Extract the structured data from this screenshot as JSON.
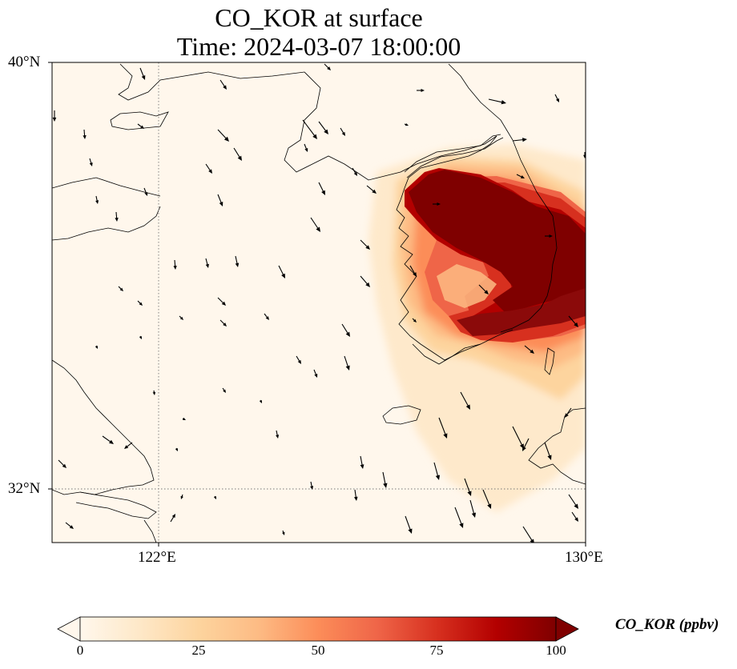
{
  "title": {
    "line1": "CO_KOR at surface",
    "line2": "Time: 2024-03-07 18:00:00"
  },
  "axes": {
    "lat_labels": [
      {
        "value": 40,
        "text": "40°N"
      },
      {
        "value": 32,
        "text": "32°N"
      }
    ],
    "lon_labels": [
      {
        "value": 122,
        "text": "122°E"
      },
      {
        "value": 130,
        "text": "130°E"
      }
    ],
    "extent": {
      "lon_min": 120,
      "lon_max": 130,
      "lat_min": 31,
      "lat_max": 40
    },
    "gridlines": {
      "lons": [
        122
      ],
      "lats": [
        32
      ],
      "style": "dotted"
    }
  },
  "colorbar": {
    "label": "CO_KOR (ppbv)",
    "ticks": [
      {
        "value": 0,
        "text": "0"
      },
      {
        "value": 25,
        "text": "25"
      },
      {
        "value": 50,
        "text": "50"
      },
      {
        "value": 75,
        "text": "75"
      },
      {
        "value": 100,
        "text": "100"
      }
    ],
    "min": 0,
    "max": 100,
    "extend": "both",
    "colormap": "OrRd",
    "colors": [
      "#fff7ec",
      "#fee8c8",
      "#fdd49e",
      "#fdbb84",
      "#fc8d59",
      "#ef6548",
      "#d7301f",
      "#b30000",
      "#7f0000"
    ]
  },
  "colors": {
    "background_field": "#fff7ec",
    "coastline": "#000000",
    "wind_arrows": "#000000"
  }
}
